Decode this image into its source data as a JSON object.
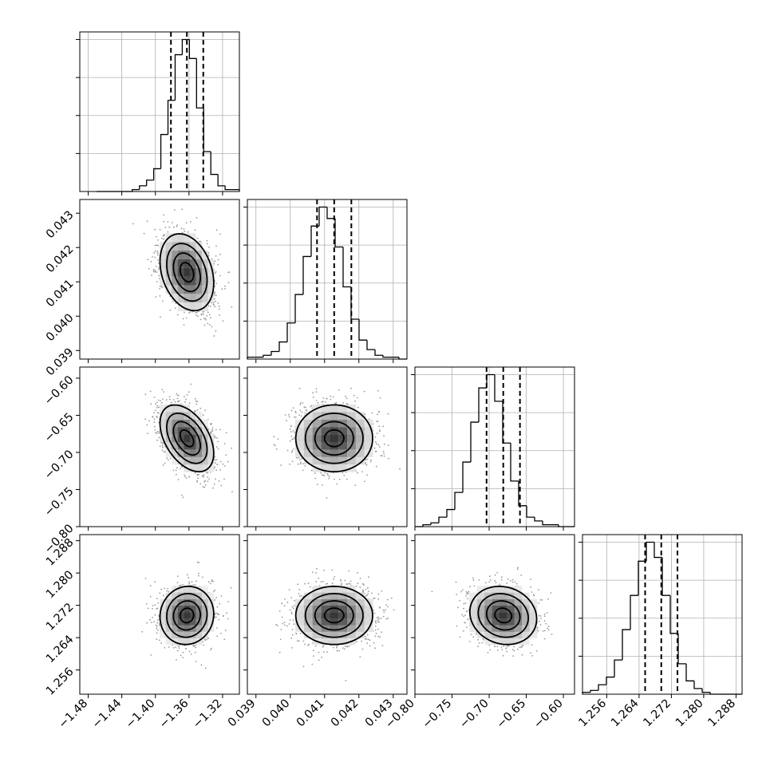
{
  "chart_data": {
    "type": "corner",
    "grid": true,
    "parameters": [
      {
        "range": [
          -1.49,
          -1.3
        ],
        "ticks": [
          -1.48,
          -1.44,
          -1.4,
          -1.36,
          -1.32
        ],
        "tick_labels": [
          "−1.48",
          "−1.44",
          "−1.40",
          "−1.36",
          "−1.32"
        ],
        "mean": -1.3625,
        "sd": 0.016,
        "quantiles": [
          -1.3815,
          -1.3625,
          -1.343
        ]
      },
      {
        "range": [
          0.03875,
          0.0434
        ],
        "ticks": [
          0.039,
          0.04,
          0.041,
          0.042,
          0.043
        ],
        "tick_labels": [
          "0.039",
          "0.040",
          "0.041",
          "0.042",
          "0.043"
        ],
        "mean": 0.04128,
        "sd": 0.00056,
        "quantiles": [
          0.04078,
          0.04128,
          0.04178
        ]
      },
      {
        "range": [
          -0.8,
          -0.585
        ],
        "ticks": [
          -0.8,
          -0.75,
          -0.7,
          -0.65,
          -0.6
        ],
        "tick_labels": [
          "−0.80",
          "−0.75",
          "−0.70",
          "−0.65",
          "−0.60"
        ],
        "mean": -0.681,
        "sd": 0.0225,
        "quantiles": [
          -0.7035,
          -0.681,
          -0.6585
        ]
      },
      {
        "range": [
          1.25,
          1.2895
        ],
        "ticks": [
          1.256,
          1.264,
          1.272,
          1.28,
          1.288
        ],
        "tick_labels": [
          "1.256",
          "1.264",
          "1.272",
          "1.280",
          "1.288"
        ],
        "mean": 1.2695,
        "sd": 0.0036,
        "quantiles": [
          1.2655,
          1.2695,
          1.2735
        ]
      }
    ],
    "histograms": [
      {
        "bins": 20,
        "range": [
          -1.47,
          -1.3
        ],
        "heights": [
          0,
          0,
          0,
          0,
          0,
          1,
          3,
          6,
          12,
          30,
          48,
          72,
          80,
          70,
          44,
          21,
          9,
          3,
          1,
          1
        ]
      },
      {
        "bins": 20,
        "range": [
          0.03875,
          0.0434
        ],
        "heights": [
          1,
          1,
          2,
          4,
          9,
          19,
          34,
          54,
          70,
          80,
          74,
          59,
          38,
          21,
          10,
          5,
          2,
          1,
          1,
          0
        ]
      },
      {
        "bins": 20,
        "range": [
          -0.8,
          -0.585
        ],
        "heights": [
          0,
          1,
          2,
          5,
          9,
          18,
          34,
          55,
          73,
          80,
          66,
          44,
          24,
          11,
          5,
          3,
          1,
          1,
          0,
          0
        ]
      },
      {
        "bins": 20,
        "range": [
          1.25,
          1.2895
        ],
        "heights": [
          1,
          2,
          5,
          9,
          18,
          34,
          52,
          70,
          80,
          72,
          52,
          32,
          16,
          7,
          3,
          1,
          0,
          0,
          0,
          0
        ]
      }
    ],
    "correlations": [
      {
        "row": 1,
        "col": 0,
        "rho": -0.28
      },
      {
        "row": 2,
        "col": 0,
        "rho": -0.45
      },
      {
        "row": 2,
        "col": 1,
        "rho": 0.0
      },
      {
        "row": 3,
        "col": 0,
        "rho": 0.05
      },
      {
        "row": 3,
        "col": 1,
        "rho": 0.0
      },
      {
        "row": 3,
        "col": 2,
        "rho": -0.12
      }
    ],
    "contour_sigma_levels": [
      0.5,
      1.0,
      1.5,
      2.0
    ]
  }
}
